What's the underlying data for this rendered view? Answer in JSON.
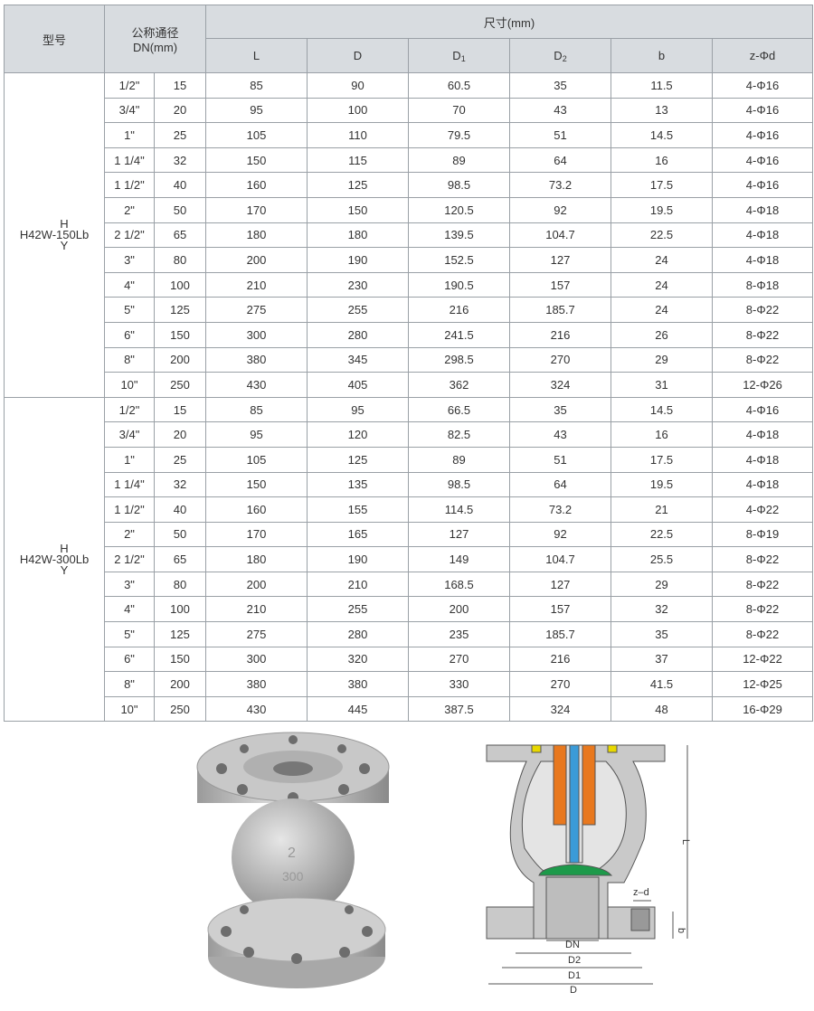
{
  "table": {
    "header": {
      "model": "型号",
      "dn": "公称通径",
      "dn_unit": "DN(mm)",
      "size": "尺寸(mm)",
      "cols": [
        {
          "main": "L"
        },
        {
          "main": "D"
        },
        {
          "main": "D",
          "sub": "1"
        },
        {
          "main": "D",
          "sub": "2"
        },
        {
          "main": "b"
        },
        {
          "main": "z-Φd"
        }
      ]
    },
    "groups": [
      {
        "model": {
          "top": "H",
          "name": "H42W-150Lb",
          "bottom": "Y"
        },
        "rows": [
          [
            "1/2\"",
            "15",
            "85",
            "90",
            "60.5",
            "35",
            "11.5",
            "4-Φ16"
          ],
          [
            "3/4\"",
            "20",
            "95",
            "100",
            "70",
            "43",
            "13",
            "4-Φ16"
          ],
          [
            "1\"",
            "25",
            "105",
            "110",
            "79.5",
            "51",
            "14.5",
            "4-Φ16"
          ],
          [
            "1 1/4\"",
            "32",
            "150",
            "115",
            "89",
            "64",
            "16",
            "4-Φ16"
          ],
          [
            "1 1/2\"",
            "40",
            "160",
            "125",
            "98.5",
            "73.2",
            "17.5",
            "4-Φ16"
          ],
          [
            "2\"",
            "50",
            "170",
            "150",
            "120.5",
            "92",
            "19.5",
            "4-Φ18"
          ],
          [
            "2 1/2\"",
            "65",
            "180",
            "180",
            "139.5",
            "104.7",
            "22.5",
            "4-Φ18"
          ],
          [
            "3\"",
            "80",
            "200",
            "190",
            "152.5",
            "127",
            "24",
            "4-Φ18"
          ],
          [
            "4\"",
            "100",
            "210",
            "230",
            "190.5",
            "157",
            "24",
            "8-Φ18"
          ],
          [
            "5\"",
            "125",
            "275",
            "255",
            "216",
            "185.7",
            "24",
            "8-Φ22"
          ],
          [
            "6\"",
            "150",
            "300",
            "280",
            "241.5",
            "216",
            "26",
            "8-Φ22"
          ],
          [
            "8\"",
            "200",
            "380",
            "345",
            "298.5",
            "270",
            "29",
            "8-Φ22"
          ],
          [
            "10\"",
            "250",
            "430",
            "405",
            "362",
            "324",
            "31",
            "12-Φ26"
          ]
        ]
      },
      {
        "model": {
          "top": "H",
          "name": "H42W-300Lb",
          "bottom": "Y"
        },
        "rows": [
          [
            "1/2\"",
            "15",
            "85",
            "95",
            "66.5",
            "35",
            "14.5",
            "4-Φ16"
          ],
          [
            "3/4\"",
            "20",
            "95",
            "120",
            "82.5",
            "43",
            "16",
            "4-Φ18"
          ],
          [
            "1\"",
            "25",
            "105",
            "125",
            "89",
            "51",
            "17.5",
            "4-Φ18"
          ],
          [
            "1 1/4\"",
            "32",
            "150",
            "135",
            "98.5",
            "64",
            "19.5",
            "4-Φ18"
          ],
          [
            "1 1/2\"",
            "40",
            "160",
            "155",
            "114.5",
            "73.2",
            "21",
            "4-Φ22"
          ],
          [
            "2\"",
            "50",
            "170",
            "165",
            "127",
            "92",
            "22.5",
            "8-Φ19"
          ],
          [
            "2 1/2\"",
            "65",
            "180",
            "190",
            "149",
            "104.7",
            "25.5",
            "8-Φ22"
          ],
          [
            "3\"",
            "80",
            "200",
            "210",
            "168.5",
            "127",
            "29",
            "8-Φ22"
          ],
          [
            "4\"",
            "100",
            "210",
            "255",
            "200",
            "157",
            "32",
            "8-Φ22"
          ],
          [
            "5\"",
            "125",
            "275",
            "280",
            "235",
            "185.7",
            "35",
            "8-Φ22"
          ],
          [
            "6\"",
            "150",
            "300",
            "320",
            "270",
            "216",
            "37",
            "12-Φ22"
          ],
          [
            "8\"",
            "200",
            "380",
            "380",
            "330",
            "270",
            "41.5",
            "12-Φ25"
          ],
          [
            "10\"",
            "250",
            "430",
            "445",
            "387.5",
            "324",
            "48",
            "16-Φ29"
          ]
        ]
      }
    ]
  },
  "diagram": {
    "labels": {
      "L": "L",
      "zd": "z–d",
      "b": "b",
      "DN": "DN",
      "D2": "D2",
      "D1": "D1",
      "D": "D"
    }
  }
}
